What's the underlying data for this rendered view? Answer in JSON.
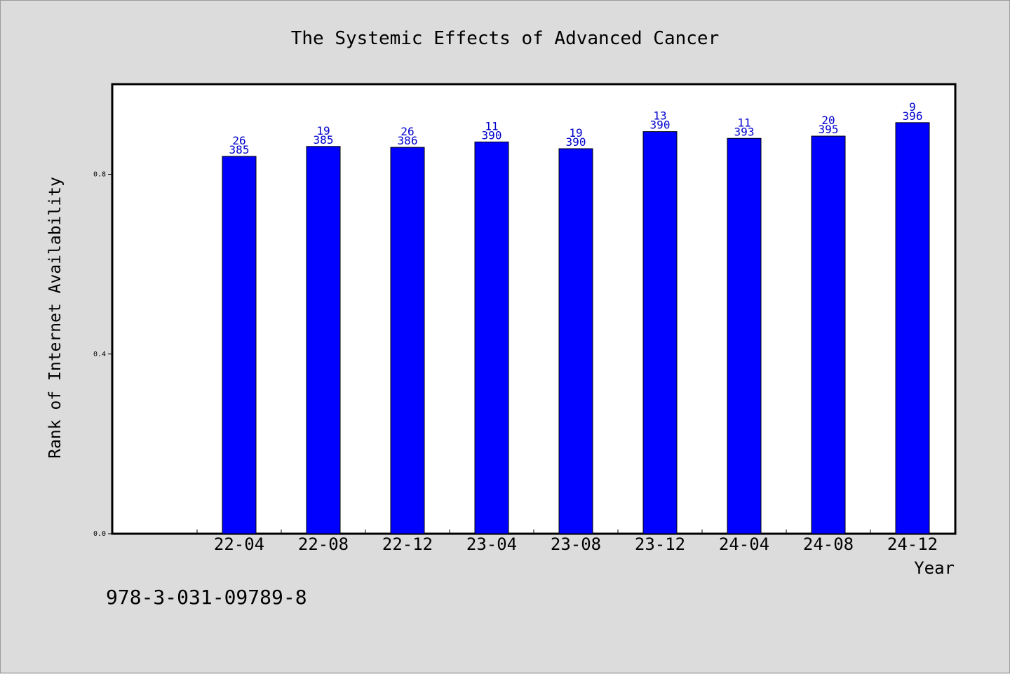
{
  "chart_data": {
    "type": "bar",
    "title": "The Systemic Effects of Advanced Cancer",
    "xlabel": "Year",
    "ylabel": "Rank of Internet Availability",
    "categories": [
      "22-04",
      "22-08",
      "22-12",
      "23-04",
      "23-08",
      "23-12",
      "24-04",
      "24-08",
      "24-12"
    ],
    "values": [
      0.84,
      0.862,
      0.86,
      0.872,
      0.857,
      0.895,
      0.88,
      0.885,
      0.915
    ],
    "label_top": [
      "26",
      "19",
      "26",
      "11",
      "19",
      "13",
      "11",
      "20",
      "9"
    ],
    "label_bottom": [
      "385",
      "385",
      "386",
      "390",
      "390",
      "390",
      "393",
      "395",
      "396"
    ],
    "yticks": [
      "0.0",
      "0.4",
      "0.8"
    ],
    "ylim": [
      0,
      1.0
    ],
    "grid": false,
    "bar_color": "#0000ff",
    "label_color": "#0000cc"
  },
  "footer": {
    "isbn": "978-3-031-09789-8"
  }
}
